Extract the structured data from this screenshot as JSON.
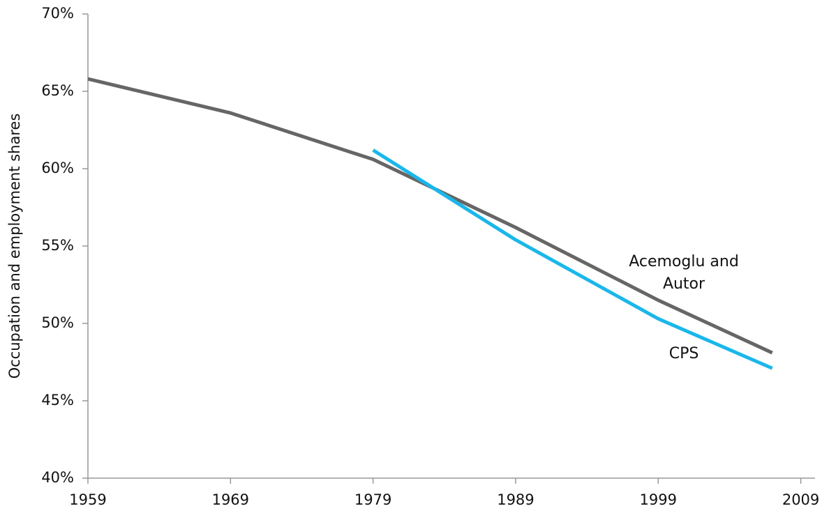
{
  "chart_data": {
    "type": "line",
    "y_label": "Occupation and employment shares",
    "x": [
      1959,
      1969,
      1979,
      1989,
      1999,
      2007
    ],
    "series": [
      {
        "name": "Acemoglu and Autor",
        "color": "#666666",
        "values": [
          65.8,
          63.6,
          60.6,
          56.2,
          51.5,
          48.1
        ]
      },
      {
        "name": "CPS",
        "color": "#1ab7ea",
        "values": [
          null,
          null,
          61.2,
          55.4,
          50.3,
          47.1
        ]
      }
    ],
    "xlim": [
      1959,
      2010
    ],
    "xticks": [
      1959,
      1969,
      1979,
      1989,
      1999,
      2009
    ],
    "ylim": [
      40,
      70
    ],
    "yticks": [
      {
        "value": 40,
        "label": "40%"
      },
      {
        "value": 45,
        "label": "45%"
      },
      {
        "value": 50,
        "label": "50%"
      },
      {
        "value": 55,
        "label": "55%"
      },
      {
        "value": 60,
        "label": "60%"
      },
      {
        "value": 65,
        "label": "65%"
      },
      {
        "value": 70,
        "label": "70%"
      }
    ]
  }
}
